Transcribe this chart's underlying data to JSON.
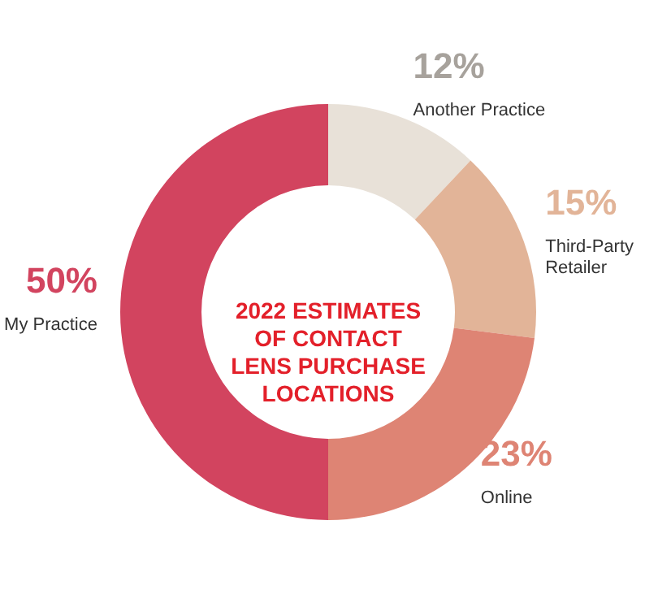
{
  "chart_data": {
    "type": "donut",
    "title": "2022 ESTIMATES\nOF CONTACT\nLENS PURCHASE\nLOCATIONS",
    "categories": [
      "Another Practice",
      "Third-Party Retailer",
      "Online",
      "My Practice"
    ],
    "values": [
      12,
      15,
      23,
      50
    ],
    "colors": [
      "#e8e1d8",
      "#e2b498",
      "#de8474",
      "#d2445f"
    ],
    "value_labels": [
      "12%",
      "15%",
      "23%",
      "50%"
    ]
  }
}
